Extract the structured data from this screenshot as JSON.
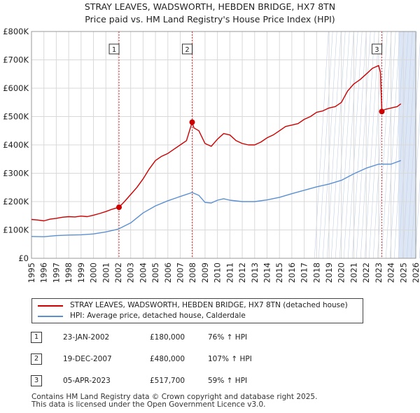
{
  "chart_data": {
    "type": "line",
    "title": "STRAY LEAVES, WADSWORTH, HEBDEN BRIDGE, HX7 8TN",
    "subtitle": "Price paid vs. HM Land Registry's House Price Index (HPI)",
    "xlim": [
      1995,
      2026
    ],
    "ylim": [
      0,
      800000
    ],
    "x_ticks": [
      "1995",
      "1996",
      "1997",
      "1998",
      "1999",
      "2000",
      "2001",
      "2002",
      "2003",
      "2004",
      "2005",
      "2006",
      "2007",
      "2008",
      "2009",
      "2010",
      "2011",
      "2012",
      "2013",
      "2014",
      "2015",
      "2016",
      "2017",
      "2018",
      "2019",
      "2020",
      "2021",
      "2022",
      "2023",
      "2024",
      "2025",
      "2026"
    ],
    "y_ticks": [
      {
        "value": 0,
        "label": "£0"
      },
      {
        "value": 100000,
        "label": "£100K"
      },
      {
        "value": 200000,
        "label": "£200K"
      },
      {
        "value": 300000,
        "label": "£300K"
      },
      {
        "value": 400000,
        "label": "£400K"
      },
      {
        "value": 500000,
        "label": "£500K"
      },
      {
        "value": 600000,
        "label": "£600K"
      },
      {
        "value": 700000,
        "label": "£700K"
      },
      {
        "value": 800000,
        "label": "£800K"
      }
    ],
    "colors": {
      "property": "#cc0000",
      "hpi": "#5b8fd0",
      "shade": "#dde6f5",
      "grid": "#d9d9d9",
      "marker_line": "#dd3333"
    },
    "series": [
      {
        "name": "STRAY LEAVES, WADSWORTH, HEBDEN BRIDGE, HX7 8TN (detached house)",
        "key": "property",
        "points": [
          [
            1995.0,
            137000
          ],
          [
            1995.5,
            135000
          ],
          [
            1996.0,
            132000
          ],
          [
            1996.5,
            138000
          ],
          [
            1997.0,
            141000
          ],
          [
            1997.5,
            145000
          ],
          [
            1998.0,
            147000
          ],
          [
            1998.5,
            146000
          ],
          [
            1999.0,
            149000
          ],
          [
            1999.5,
            147000
          ],
          [
            2000.0,
            152000
          ],
          [
            2000.5,
            158000
          ],
          [
            2001.0,
            165000
          ],
          [
            2001.5,
            173000
          ],
          [
            2002.06,
            180000
          ],
          [
            2002.5,
            200000
          ],
          [
            2003.0,
            225000
          ],
          [
            2003.5,
            250000
          ],
          [
            2004.0,
            280000
          ],
          [
            2004.5,
            315000
          ],
          [
            2005.0,
            345000
          ],
          [
            2005.5,
            360000
          ],
          [
            2006.0,
            370000
          ],
          [
            2006.5,
            385000
          ],
          [
            2007.0,
            400000
          ],
          [
            2007.5,
            415000
          ],
          [
            2007.96,
            480000
          ],
          [
            2008.1,
            460000
          ],
          [
            2008.5,
            450000
          ],
          [
            2009.0,
            405000
          ],
          [
            2009.5,
            395000
          ],
          [
            2010.0,
            420000
          ],
          [
            2010.5,
            440000
          ],
          [
            2011.0,
            435000
          ],
          [
            2011.5,
            415000
          ],
          [
            2012.0,
            405000
          ],
          [
            2012.5,
            400000
          ],
          [
            2013.0,
            400000
          ],
          [
            2013.5,
            410000
          ],
          [
            2014.0,
            425000
          ],
          [
            2014.5,
            435000
          ],
          [
            2015.0,
            450000
          ],
          [
            2015.5,
            465000
          ],
          [
            2016.0,
            470000
          ],
          [
            2016.5,
            475000
          ],
          [
            2017.0,
            490000
          ],
          [
            2017.5,
            500000
          ],
          [
            2018.0,
            515000
          ],
          [
            2018.5,
            520000
          ],
          [
            2019.0,
            530000
          ],
          [
            2019.5,
            535000
          ],
          [
            2020.0,
            550000
          ],
          [
            2020.5,
            590000
          ],
          [
            2021.0,
            615000
          ],
          [
            2021.5,
            630000
          ],
          [
            2022.0,
            650000
          ],
          [
            2022.5,
            670000
          ],
          [
            2023.0,
            680000
          ],
          [
            2023.15,
            655000
          ],
          [
            2023.26,
            517700
          ],
          [
            2023.5,
            525000
          ],
          [
            2024.0,
            530000
          ],
          [
            2024.5,
            535000
          ],
          [
            2024.8,
            545000
          ]
        ]
      },
      {
        "name": "HPI: Average price, detached house, Calderdale",
        "key": "hpi",
        "points": [
          [
            1995.0,
            77000
          ],
          [
            1996.0,
            76000
          ],
          [
            1997.0,
            80000
          ],
          [
            1998.0,
            82000
          ],
          [
            1999.0,
            83000
          ],
          [
            2000.0,
            86000
          ],
          [
            2001.0,
            93000
          ],
          [
            2002.0,
            103000
          ],
          [
            2003.0,
            125000
          ],
          [
            2004.0,
            160000
          ],
          [
            2005.0,
            185000
          ],
          [
            2006.0,
            203000
          ],
          [
            2007.0,
            218000
          ],
          [
            2007.96,
            232000
          ],
          [
            2008.5,
            222000
          ],
          [
            2009.0,
            197000
          ],
          [
            2009.5,
            195000
          ],
          [
            2010.0,
            205000
          ],
          [
            2010.5,
            210000
          ],
          [
            2011.0,
            205000
          ],
          [
            2012.0,
            200000
          ],
          [
            2013.0,
            200000
          ],
          [
            2014.0,
            206000
          ],
          [
            2015.0,
            215000
          ],
          [
            2016.0,
            228000
          ],
          [
            2017.0,
            240000
          ],
          [
            2018.0,
            252000
          ],
          [
            2019.0,
            262000
          ],
          [
            2020.0,
            275000
          ],
          [
            2021.0,
            298000
          ],
          [
            2022.0,
            318000
          ],
          [
            2023.0,
            332000
          ],
          [
            2024.0,
            332000
          ],
          [
            2024.8,
            345000
          ]
        ]
      }
    ],
    "shaded_range": [
      2024.6,
      2026
    ],
    "transactions": [
      {
        "id": "1",
        "date": "23-JAN-2002",
        "price": "£180,000",
        "hpi": "76% ↑ HPI",
        "x": 2002.06,
        "value": 180000
      },
      {
        "id": "2",
        "date": "19-DEC-2007",
        "price": "£480,000",
        "hpi": "107% ↑ HPI",
        "x": 2007.96,
        "value": 480000
      },
      {
        "id": "3",
        "date": "05-APR-2023",
        "price": "£517,700",
        "hpi": "59% ↑ HPI",
        "x": 2023.26,
        "value": 517700
      }
    ]
  },
  "legend": {
    "property_label": "STRAY LEAVES, WADSWORTH, HEBDEN BRIDGE, HX7 8TN (detached house)",
    "hpi_label": "HPI: Average price, detached house, Calderdale"
  },
  "footer": {
    "line1": "Contains HM Land Registry data © Crown copyright and database right 2025.",
    "line2": "This data is licensed under the Open Government Licence v3.0."
  }
}
